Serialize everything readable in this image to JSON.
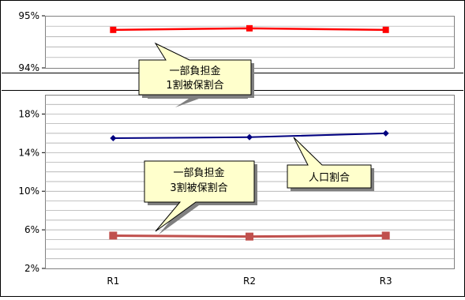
{
  "chart_data": [
    {
      "type": "line",
      "categories": [
        "R1",
        "R2",
        "R3"
      ],
      "ylim": [
        94,
        95
      ],
      "y_ticks": [
        "95%",
        "94%"
      ],
      "grid": true,
      "series": [
        {
          "name": "一部負担金\n1割被保割合",
          "values": [
            94.73,
            94.76,
            94.73
          ],
          "color": "#ff0000"
        }
      ],
      "annotations": [
        "一部負担金",
        "1割被保割合"
      ]
    },
    {
      "type": "line",
      "categories": [
        "R1",
        "R2",
        "R3"
      ],
      "ylim": [
        2,
        20
      ],
      "y_ticks": [
        "18%",
        "14%",
        "10%",
        "6%",
        "2%"
      ],
      "x_ticks": [
        "R1",
        "R2",
        "R3"
      ],
      "grid": true,
      "series": [
        {
          "name": "人口割合",
          "values": [
            15.5,
            15.6,
            16.0
          ],
          "color": "#000080",
          "marker": "diamond"
        },
        {
          "name": "一部負担金\n3割被保割合",
          "values": [
            5.4,
            5.3,
            5.4
          ],
          "color": "#c0504d",
          "marker": "square"
        }
      ],
      "annotations": [
        "人口割合",
        "一部負担金",
        "3割被保割合"
      ]
    }
  ]
}
